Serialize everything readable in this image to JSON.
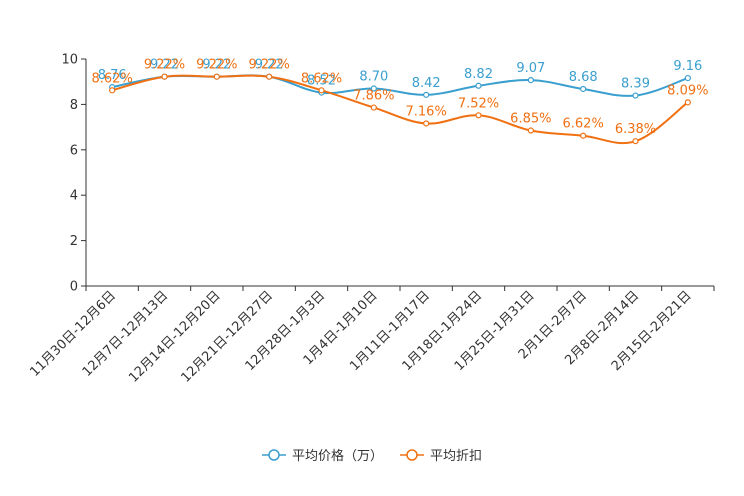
{
  "chart_data": {
    "type": "line",
    "title": "",
    "xlabel": "",
    "ylabel": "",
    "ylim": [
      0,
      10
    ],
    "yticks": [
      0,
      2,
      4,
      6,
      8,
      10
    ],
    "grid": false,
    "legend_position": "bottom-center",
    "categories": [
      "11月30日-12月6日",
      "12月7日-12月13日",
      "12月14日-12月20日",
      "12月21日-12月27日",
      "12月28日-1月3日",
      "1月4日-1月10日",
      "1月11日-1月17日",
      "1月18日-1月24日",
      "1月25日-1月31日",
      "2月1日-2月7日",
      "2月8日-2月14日",
      "2月15日-2月21日"
    ],
    "series": [
      {
        "name": "平均价格（万）",
        "color": "#3a9fcf",
        "values": [
          8.76,
          9.22,
          9.22,
          9.22,
          8.52,
          8.7,
          8.42,
          8.82,
          9.07,
          8.68,
          8.39,
          9.16
        ],
        "labels": [
          "8.76",
          "9.22",
          "9.22",
          "9.22",
          "8.52",
          "8.70",
          "8.42",
          "8.82",
          "9.07",
          "8.68",
          "8.39",
          "9.16"
        ]
      },
      {
        "name": "平均折扣",
        "color": "#f07012",
        "values": [
          8.62,
          9.22,
          9.22,
          9.22,
          8.62,
          7.86,
          7.16,
          7.52,
          6.85,
          6.62,
          6.38,
          8.09
        ],
        "labels": [
          "8.62%",
          "9.22%",
          "9.22%",
          "9.22%",
          "8.62%",
          "7.86%",
          "7.16%",
          "7.52%",
          "6.85%",
          "6.62%",
          "6.38%",
          "8.09%"
        ]
      }
    ]
  }
}
